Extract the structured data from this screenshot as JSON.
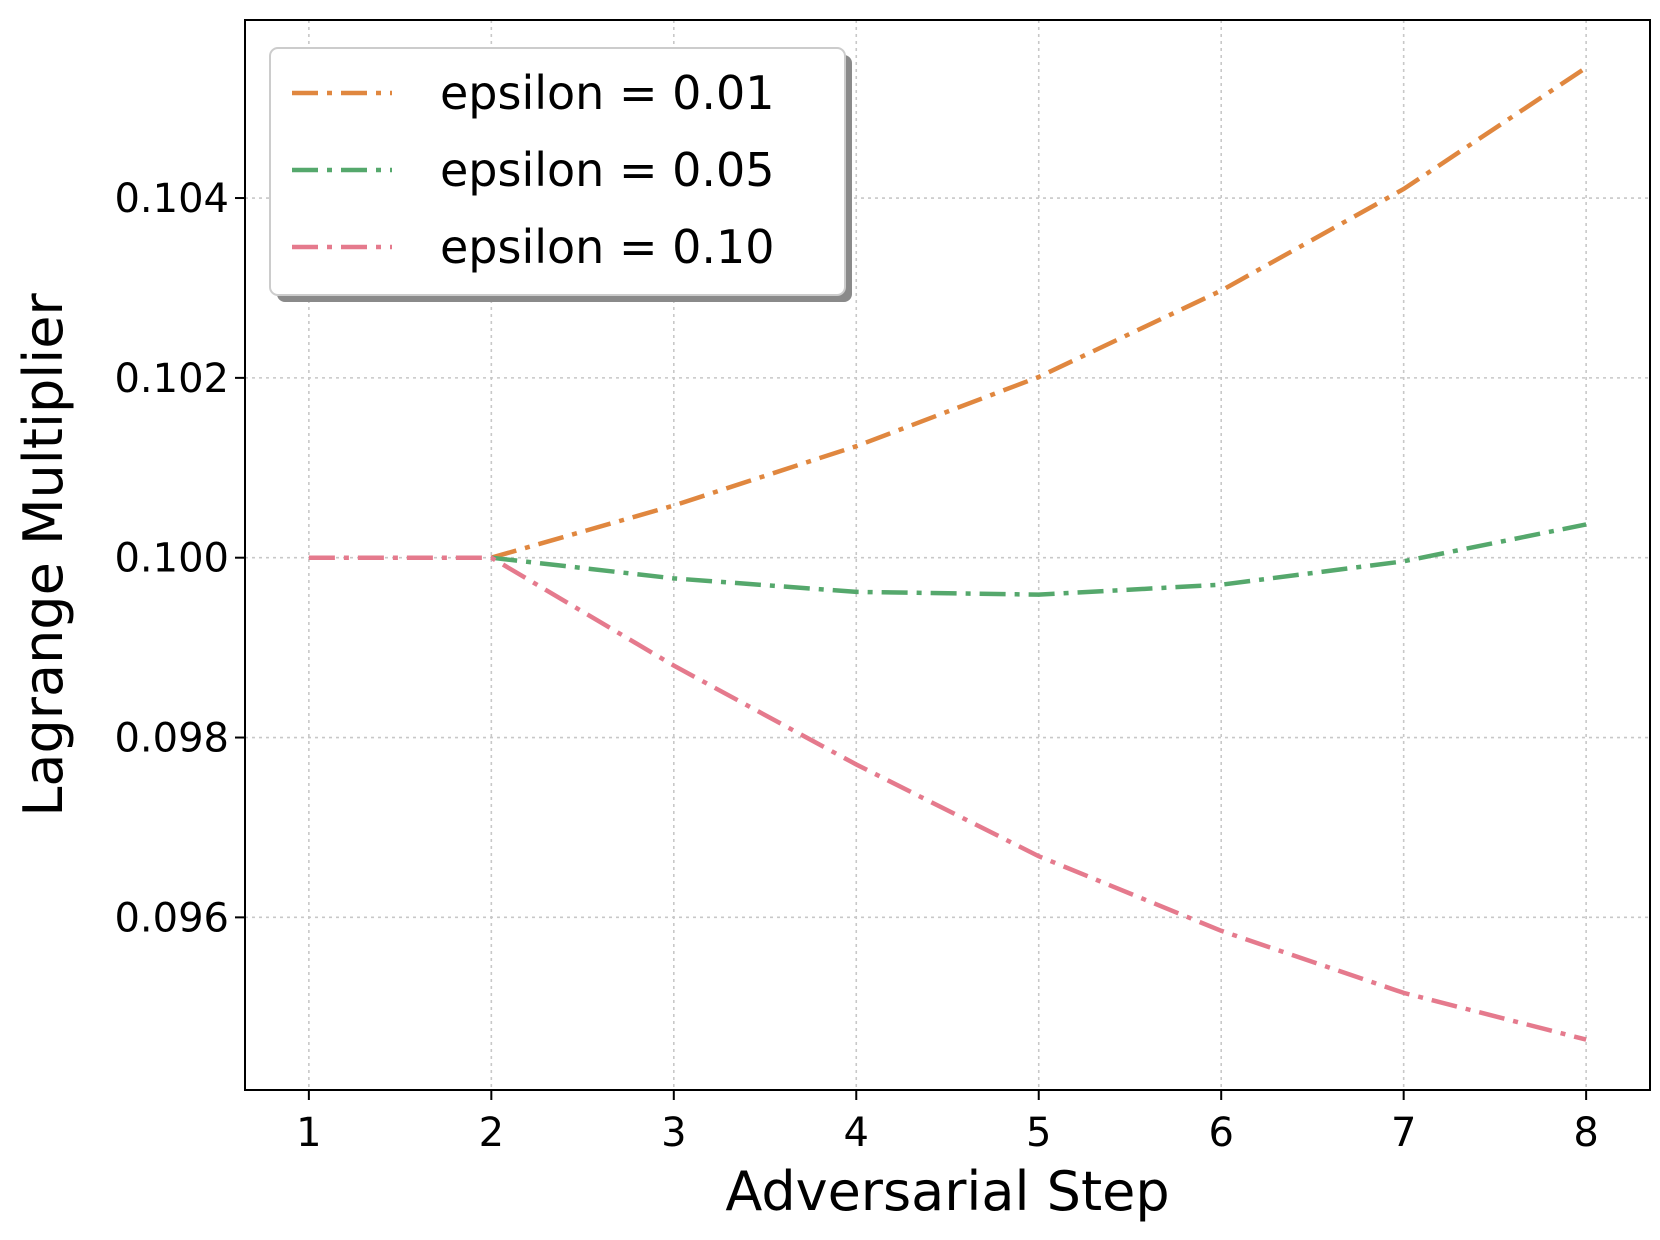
{
  "chart_data": {
    "type": "line",
    "xlabel": "Adversarial Step",
    "ylabel": "Lagrange Multiplier",
    "xlim": [
      0.65,
      8.35
    ],
    "ylim": [
      0.09408,
      0.10598
    ],
    "xticks": [
      1,
      2,
      3,
      4,
      5,
      6,
      7,
      8
    ],
    "yticks": [
      0.096,
      0.098,
      0.1,
      0.102,
      0.104
    ],
    "ytick_labels": [
      "0.096",
      "0.098",
      "0.100",
      "0.102",
      "0.104"
    ],
    "grid": true,
    "legend_position": "top-left",
    "line_style": "dash-dot",
    "series": [
      {
        "name": "epsilon = 0.01",
        "color": "#e0873f",
        "x": [
          2,
          3,
          4,
          5,
          6,
          7,
          8
        ],
        "y": [
          0.1,
          0.10058,
          0.10124,
          0.10201,
          0.10297,
          0.1041,
          0.10545
        ]
      },
      {
        "name": "epsilon = 0.05",
        "color": "#55a86c",
        "x": [
          2,
          3,
          4,
          5,
          6,
          7,
          8
        ],
        "y": [
          0.1,
          0.09977,
          0.09962,
          0.09959,
          0.0997,
          0.09996,
          0.10037
        ]
      },
      {
        "name": "epsilon = 0.10",
        "color": "#e57a8d",
        "x": [
          1,
          2,
          3,
          4,
          5,
          6,
          7,
          8
        ],
        "y": [
          0.1,
          0.1,
          0.0988,
          0.0977,
          0.09668,
          0.09585,
          0.09516,
          0.09464
        ]
      }
    ]
  }
}
